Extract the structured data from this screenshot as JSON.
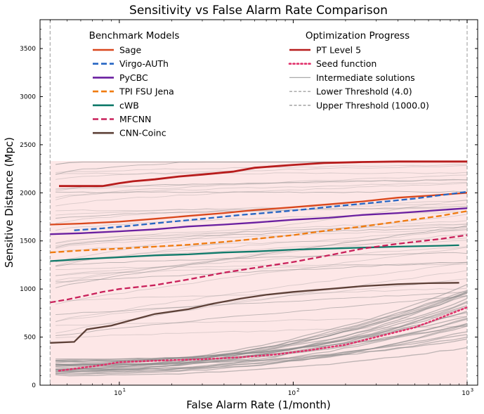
{
  "chart_data": {
    "type": "line",
    "title": "Sensitivity vs False Alarm Rate Comparison",
    "xlabel": "False Alarm Rate (1/month)",
    "ylabel": "Sensitive Distance (Mpc)",
    "xscale": "log",
    "xlim": [
      3.5,
      1150
    ],
    "ylim": [
      0,
      3800
    ],
    "x_ticks": [
      {
        "value": 10,
        "base": "10",
        "exp": "1"
      },
      {
        "value": 100,
        "base": "10",
        "exp": "2"
      },
      {
        "value": 1000,
        "base": "10",
        "exp": "3"
      }
    ],
    "y_ticks": [
      0,
      500,
      1000,
      1500,
      2000,
      2500,
      3000,
      3500
    ],
    "thresholds": {
      "lower": 4.0,
      "upper": 1000.0
    },
    "shaded_band": {
      "x_from": 4.0,
      "x_to": 1000.0,
      "y_from": 0,
      "y_to": 2330,
      "color": "#fde7e7"
    },
    "legends": {
      "benchmark_title": "Benchmark Models",
      "optimization_title": "Optimization Progress",
      "benchmark_entries": [
        {
          "label": "Sage",
          "color": "#d9471c",
          "style": "solid"
        },
        {
          "label": "Virgo-AUTh",
          "color": "#2565c3",
          "style": "dashed"
        },
        {
          "label": "PyCBC",
          "color": "#6a1fa0",
          "style": "solid"
        },
        {
          "label": "TPI FSU Jena",
          "color": "#f07b0f",
          "style": "dashed"
        },
        {
          "label": "cWB",
          "color": "#0f7a6a",
          "style": "solid"
        },
        {
          "label": "MFCNN",
          "color": "#c9205a",
          "style": "dashed"
        },
        {
          "label": "CNN-Coinc",
          "color": "#5d4037",
          "style": "solid"
        }
      ],
      "optimization_entries": [
        {
          "label": "PT Level 5",
          "color": "#b71c1c",
          "style": "solid"
        },
        {
          "label": "Seed function",
          "color": "#e0306a",
          "style": "dotted"
        },
        {
          "label": "Intermediate solutions",
          "color": "#aaaaaa",
          "style": "solid"
        },
        {
          "label": "Lower Threshold (4.0)",
          "color": "#999999",
          "style": "dashed"
        },
        {
          "label": "Upper Threshold (1000.0)",
          "color": "#999999",
          "style": "dashed"
        }
      ]
    },
    "series": [
      {
        "name": "PT Level 5",
        "color": "#b71c1c",
        "style": "solid",
        "width": 2.8,
        "x": [
          4.5,
          8,
          10,
          12,
          16,
          22,
          30,
          45,
          60,
          100,
          150,
          250,
          400,
          700,
          1000
        ],
        "y": [
          2070,
          2070,
          2100,
          2120,
          2140,
          2170,
          2190,
          2220,
          2260,
          2290,
          2310,
          2320,
          2325,
          2325,
          2325
        ]
      },
      {
        "name": "Sage",
        "color": "#d9471c",
        "style": "solid",
        "width": 2.3,
        "x": [
          4.0,
          6,
          10,
          16,
          25,
          40,
          60,
          100,
          160,
          250,
          400,
          600,
          1000
        ],
        "y": [
          1670,
          1680,
          1700,
          1730,
          1760,
          1790,
          1820,
          1850,
          1880,
          1910,
          1950,
          1970,
          2000
        ]
      },
      {
        "name": "Virgo-AUTh",
        "color": "#2565c3",
        "style": "dashed",
        "width": 2.3,
        "x": [
          5.5,
          8,
          12,
          20,
          30,
          50,
          80,
          120,
          200,
          300,
          500,
          1000
        ],
        "y": [
          1610,
          1630,
          1660,
          1700,
          1730,
          1770,
          1800,
          1830,
          1870,
          1900,
          1940,
          2010
        ]
      },
      {
        "name": "PyCBC",
        "color": "#6a1fa0",
        "style": "solid",
        "width": 2.3,
        "x": [
          4.0,
          6,
          10,
          16,
          25,
          40,
          60,
          100,
          160,
          250,
          400,
          700,
          1000
        ],
        "y": [
          1570,
          1580,
          1600,
          1620,
          1650,
          1670,
          1690,
          1720,
          1740,
          1770,
          1790,
          1820,
          1840
        ]
      },
      {
        "name": "TPI FSU Jena",
        "color": "#f07b0f",
        "style": "dashed",
        "width": 2.3,
        "x": [
          4.0,
          6,
          10,
          16,
          25,
          40,
          60,
          100,
          160,
          250,
          400,
          700,
          1000
        ],
        "y": [
          1380,
          1400,
          1420,
          1440,
          1460,
          1490,
          1520,
          1560,
          1610,
          1650,
          1700,
          1760,
          1810
        ]
      },
      {
        "name": "cWB",
        "color": "#0f7a6a",
        "style": "solid",
        "width": 2.3,
        "x": [
          4.0,
          6,
          10,
          16,
          25,
          40,
          60,
          100,
          160,
          250,
          400,
          700,
          900
        ],
        "y": [
          1290,
          1310,
          1330,
          1350,
          1360,
          1380,
          1390,
          1410,
          1420,
          1430,
          1440,
          1450,
          1455
        ]
      },
      {
        "name": "MFCNN",
        "color": "#c9205a",
        "style": "dashed",
        "width": 2.3,
        "x": [
          4.0,
          5,
          6,
          8,
          10,
          16,
          25,
          40,
          60,
          100,
          160,
          250,
          400,
          700,
          1000
        ],
        "y": [
          860,
          890,
          920,
          970,
          1000,
          1040,
          1100,
          1170,
          1220,
          1280,
          1350,
          1420,
          1470,
          1520,
          1560
        ]
      },
      {
        "name": "CNN-Coinc",
        "color": "#5d4037",
        "style": "solid",
        "width": 2.3,
        "x": [
          4.0,
          5.5,
          6.5,
          9,
          12,
          16,
          25,
          35,
          50,
          70,
          100,
          160,
          250,
          400,
          600,
          900
        ],
        "y": [
          440,
          450,
          580,
          620,
          680,
          740,
          790,
          850,
          900,
          940,
          970,
          1000,
          1030,
          1050,
          1060,
          1065
        ]
      },
      {
        "name": "Seed function",
        "color": "#e0306a",
        "style": "dotted",
        "width": 2.5,
        "x": [
          4.5,
          6,
          8,
          10,
          14,
          20,
          30,
          50,
          80,
          120,
          200,
          300,
          500,
          700,
          1000
        ],
        "y": [
          150,
          180,
          210,
          240,
          250,
          260,
          270,
          290,
          320,
          360,
          420,
          500,
          600,
          700,
          810
        ]
      }
    ]
  }
}
